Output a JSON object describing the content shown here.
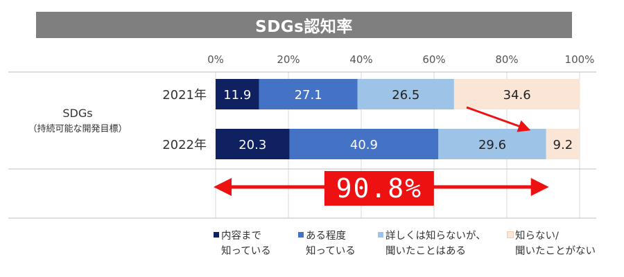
{
  "chart_data": {
    "type": "bar",
    "orientation": "horizontal",
    "stacked": true,
    "title": "SDGs認知率",
    "group_label": "SDGs",
    "group_sublabel": "（持続可能な開発目標）",
    "categories": [
      "2021年",
      "2022年"
    ],
    "xlim": [
      0,
      100
    ],
    "xticks": [
      "0%",
      "20%",
      "40%",
      "60%",
      "80%",
      "100%"
    ],
    "tick_values": [
      0,
      20,
      40,
      60,
      80,
      100
    ],
    "series": [
      {
        "name": "内容まで\n知っている",
        "color": "#0f2160",
        "label_color": "#ffffff",
        "values": [
          11.9,
          20.3
        ],
        "labels": [
          "11.9",
          "20.3"
        ]
      },
      {
        "name": "ある程度\n知っている",
        "color": "#4472c4",
        "label_color": "#ffffff",
        "values": [
          27.1,
          40.9
        ],
        "labels": [
          "27.1",
          "40.9"
        ]
      },
      {
        "name": "詳しくは知らないが、\n聞いたことはある",
        "color": "#9dc3e6",
        "label_color": "#222222",
        "values": [
          26.5,
          29.6
        ],
        "labels": [
          "26.5",
          "29.6"
        ]
      },
      {
        "name": "知らない/\n聞いたことがない",
        "color": "#fbe5d6",
        "label_color": "#222222",
        "values": [
          34.6,
          9.2
        ],
        "labels": [
          "34.6",
          "9.2"
        ]
      }
    ],
    "annotation": {
      "text": "90.8%",
      "from": 0,
      "to": 90.8,
      "color": "#ee1111"
    },
    "legend_position": "bottom",
    "grid": true
  }
}
